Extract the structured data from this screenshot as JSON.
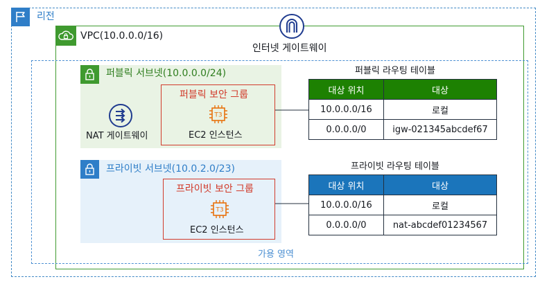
{
  "region": {
    "label": "리전",
    "color": "#2f7ec8"
  },
  "vpc": {
    "label": "VPC(10.0.0.0/16)",
    "color": "#3f9a2f"
  },
  "internet_gateway": {
    "label": "인터넷 게이트웨이",
    "color": "#1f3b8f"
  },
  "availability_zone": {
    "label": "가용 영역",
    "color": "#4b8fd2"
  },
  "public_subnet": {
    "label": "퍼블릭 서브넷(10.0.0.0/24)",
    "color": "#3f9a2f",
    "nat_gateway_label": "NAT 게이트웨이",
    "security_group": {
      "label": "퍼블릭 보안 그룹",
      "instance_label": "EC2 인스턴스",
      "instance_type": "T3"
    }
  },
  "private_subnet": {
    "label": "프라이빗 서브넷(10.0.2.0/23)",
    "color": "#2f7ec8",
    "security_group": {
      "label": "프라이빗 보안 그룹",
      "instance_label": "EC2 인스턴스",
      "instance_type": "T3"
    }
  },
  "public_route_table": {
    "title": "퍼블릭 라우팅 테이블",
    "header_color": "#1d8102",
    "columns": [
      "대상 위치",
      "대상"
    ],
    "rows": [
      [
        "10.0.0.0/16",
        "로컬"
      ],
      [
        "0.0.0.0/0",
        "igw-021345abcdef67"
      ]
    ]
  },
  "private_route_table": {
    "title": "프라이빗 라우팅 테이블",
    "header_color": "#1b75bb",
    "columns": [
      "대상 위치",
      "대상"
    ],
    "rows": [
      [
        "10.0.0.0/16",
        "로컬"
      ],
      [
        "0.0.0.0/0",
        "nat-abcdef01234567"
      ]
    ]
  },
  "icons": {
    "region": "flag-icon",
    "vpc": "cloud-lock-icon",
    "internet_gateway": "internet-gateway-icon",
    "subnet": "padlock-icon",
    "nat_gateway": "nat-gateway-icon",
    "instance": "ec2-instance-chip-icon"
  }
}
